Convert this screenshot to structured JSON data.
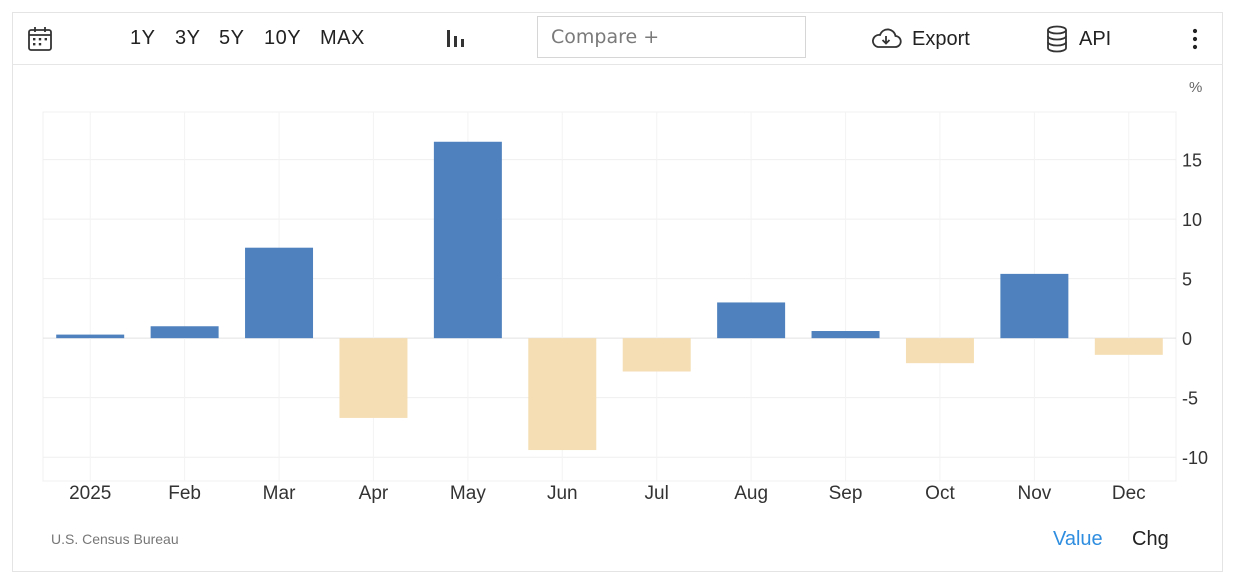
{
  "toolbar": {
    "calendar_icon": "calendar-icon",
    "ranges": [
      "1Y",
      "3Y",
      "5Y",
      "10Y",
      "MAX"
    ],
    "chart_type_icon": "bar-chart-icon",
    "compare_placeholder": "Compare +",
    "export_label": "Export",
    "export_icon": "cloud-download-icon",
    "api_label": "API",
    "api_icon": "database-icon",
    "more_icon": "more-vertical-icon"
  },
  "footer": {
    "source": "U.S. Census Bureau",
    "view_value": "Value",
    "view_chg": "Chg",
    "active_view_color": "#2f8ee0"
  },
  "chart_data": {
    "type": "bar",
    "unit": "%",
    "categories": [
      "2025",
      "Feb",
      "Mar",
      "Apr",
      "May",
      "Jun",
      "Jul",
      "Aug",
      "Sep",
      "Oct",
      "Nov",
      "Dec"
    ],
    "values": [
      0.3,
      1.0,
      7.6,
      -6.7,
      16.5,
      -9.4,
      -2.8,
      3.0,
      0.6,
      -2.1,
      5.4,
      -1.4
    ],
    "ylim": [
      -12,
      19
    ],
    "yticks": [
      -10,
      -5,
      0,
      5,
      10,
      15
    ],
    "title": "",
    "xlabel": "",
    "ylabel": "",
    "grid": true,
    "colors": {
      "positive": "#4e81bd",
      "negative": "#f5deb3"
    },
    "y_axis_position": "right"
  }
}
